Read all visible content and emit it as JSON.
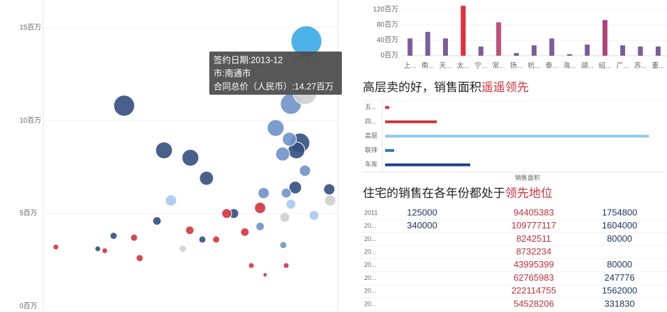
{
  "chart_data": [
    {
      "type": "scatter",
      "ylim": [
        0,
        16.3
      ],
      "xlim": [
        0,
        100
      ],
      "yticks": [
        {
          "value": 0,
          "label": "0百万"
        },
        {
          "value": 5,
          "label": "5百万"
        },
        {
          "value": 10,
          "label": "10百万"
        },
        {
          "value": 15,
          "label": "15百万"
        }
      ],
      "grid": true,
      "series": [
        {
          "color": "#34507f",
          "x": [
            27.6,
            41.2,
            50.2,
            55.7,
            86.0,
            87.6,
            86.4,
            97.6,
            65.0,
            38.8,
            54.3,
            24.0,
            18.6
          ],
          "values": [
            10.8,
            8.4,
            8.0,
            6.9,
            6.4,
            8.8,
            8.4,
            6.3,
            5.0,
            4.6,
            3.6,
            3.8,
            3.1
          ],
          "sizes": [
            15,
            12,
            12,
            10,
            9,
            14,
            12,
            8,
            7,
            6,
            5,
            5,
            4
          ]
        },
        {
          "color": "#6f92c9",
          "x": [
            84.5,
            79.3,
            81.7,
            84.0,
            89.3,
            75.2,
            82.9,
            74.0,
            81.9
          ],
          "values": [
            10.9,
            9.6,
            8.2,
            9.0,
            7.3,
            6.1,
            6.1,
            4.3,
            3.3
          ],
          "sizes": [
            15,
            12,
            10,
            10,
            8,
            8,
            7,
            6,
            5
          ]
        },
        {
          "color": "#cfcfd2",
          "x": [
            89.3,
            97.9,
            82.4,
            47.6
          ],
          "values": [
            11.5,
            5.7,
            4.8,
            3.1
          ],
          "sizes": [
            17,
            8,
            7,
            5
          ]
        },
        {
          "color": "#a9c9ef",
          "x": [
            43.6,
            84.5,
            92.4
          ],
          "values": [
            5.7,
            5.5,
            4.9
          ],
          "sizes": [
            8,
            7,
            7
          ]
        },
        {
          "color": "#d1343b",
          "x": [
            74.0,
            62.6,
            68.8,
            50.0,
            59.0,
            31.0,
            4.3,
            82.9,
            71.0,
            32.9,
            21.0,
            75.7
          ],
          "values": [
            5.3,
            5.0,
            4.0,
            4.1,
            3.6,
            3.7,
            3.2,
            2.2,
            2.2,
            2.6,
            3.0,
            1.7
          ],
          "sizes": [
            8,
            7,
            6,
            6,
            5,
            5,
            4,
            4,
            4,
            5,
            4,
            3
          ]
        },
        {
          "color": "#3aa8e8",
          "x": [
            89.8
          ],
          "values": [
            14.27
          ],
          "sizes": [
            22
          ]
        }
      ],
      "point_label": "2013-12",
      "tooltip": [
        "签约日期:2013-12",
        "市:南通市",
        "合同总价（人民币）:14.27百万"
      ]
    },
    {
      "type": "bar",
      "ylim": [
        0,
        127
      ],
      "yticks": [
        {
          "value": 0,
          "label": "0百万"
        },
        {
          "value": 40,
          "label": "40百万"
        },
        {
          "value": 80,
          "label": "80百万"
        },
        {
          "value": 120,
          "label": "120百万"
        }
      ],
      "categories": [
        "上...",
        "南...",
        "天...",
        "太...",
        "宁...",
        "常...",
        "扬...",
        "杭...",
        "泰...",
        "海...",
        "湖...",
        "绍...",
        "广...",
        "苏...",
        "重..."
      ],
      "values": [
        45,
        62,
        45,
        130,
        24,
        87,
        7,
        27,
        45,
        4,
        29,
        93,
        27,
        24,
        24
      ],
      "colors": [
        "#7b5c9c",
        "#7b5c9c",
        "#7b5c9c",
        "#e0303c",
        "#7b5c9c",
        "#c0507a",
        "#7b5c9c",
        "#7b5c9c",
        "#7b5c9c",
        "#7b5c9c",
        "#7b5c9c",
        "#b0407a",
        "#7b5c9c",
        "#7b5c9c",
        "#7b5c9c"
      ]
    },
    {
      "type": "barh",
      "title": "高层卖的好，销售面积",
      "title_highlight": "遥遥领先",
      "xlim": [
        0,
        400
      ],
      "x_label": "销售面积",
      "categories": [
        "五...",
        "四...",
        "高层",
        "联排",
        "车库"
      ],
      "values": [
        6,
        74,
        378,
        13,
        122
      ],
      "colors": [
        "#d1343b",
        "#d1343b",
        "#8ecbef",
        "#2a7ab8",
        "#1f3f8a"
      ]
    }
  ],
  "table": {
    "title": "住宅的销售在各年份都处于",
    "title_highlight": "领先地位",
    "rows": [
      [
        "2011",
        125000,
        94405383,
        1754800
      ],
      [
        "20...",
        340000,
        109777117,
        1604000
      ],
      [
        "20...",
        null,
        8242511,
        80000
      ],
      [
        "20...",
        null,
        8732234,
        null
      ],
      [
        "20...",
        null,
        43995399,
        80000
      ],
      [
        "20...",
        null,
        62765983,
        247776
      ],
      [
        "20...",
        null,
        222114755,
        1562000
      ],
      [
        "20...",
        null,
        54528206,
        331830
      ]
    ]
  }
}
